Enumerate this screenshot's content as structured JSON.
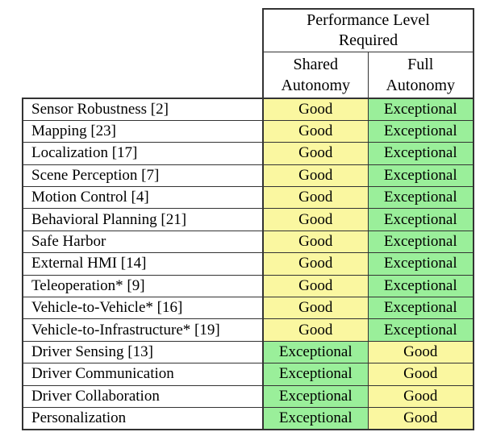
{
  "table": {
    "header": {
      "group_lines": [
        "Performance Level",
        "Required"
      ],
      "col1_lines": [
        "Shared",
        "Autonomy"
      ],
      "col2_lines": [
        "Full",
        "Autonomy"
      ]
    },
    "colors": {
      "good_bg": "#FAF7A0",
      "exceptional_bg": "#9AEF9A",
      "border": "#333333"
    },
    "rows": [
      {
        "label": "Sensor Robustness [2]",
        "shared": "Good",
        "full": "Exceptional"
      },
      {
        "label": "Mapping [23]",
        "shared": "Good",
        "full": "Exceptional"
      },
      {
        "label": "Localization [17]",
        "shared": "Good",
        "full": "Exceptional"
      },
      {
        "label": "Scene Perception [7]",
        "shared": "Good",
        "full": "Exceptional"
      },
      {
        "label": "Motion Control [4]",
        "shared": "Good",
        "full": "Exceptional"
      },
      {
        "label": "Behavioral Planning [21]",
        "shared": "Good",
        "full": "Exceptional"
      },
      {
        "label": "Safe Harbor",
        "shared": "Good",
        "full": "Exceptional"
      },
      {
        "label": "External HMI [14]",
        "shared": "Good",
        "full": "Exceptional"
      },
      {
        "label": "Teleoperation* [9]",
        "shared": "Good",
        "full": "Exceptional"
      },
      {
        "label": "Vehicle-to-Vehicle* [16]",
        "shared": "Good",
        "full": "Exceptional"
      },
      {
        "label": "Vehicle-to-Infrastructure* [19]",
        "shared": "Good",
        "full": "Exceptional"
      },
      {
        "label": "Driver Sensing [13]",
        "shared": "Exceptional",
        "full": "Good"
      },
      {
        "label": "Driver Communication",
        "shared": "Exceptional",
        "full": "Good"
      },
      {
        "label": "Driver Collaboration",
        "shared": "Exceptional",
        "full": "Good"
      },
      {
        "label": "Personalization",
        "shared": "Exceptional",
        "full": "Good"
      }
    ]
  }
}
